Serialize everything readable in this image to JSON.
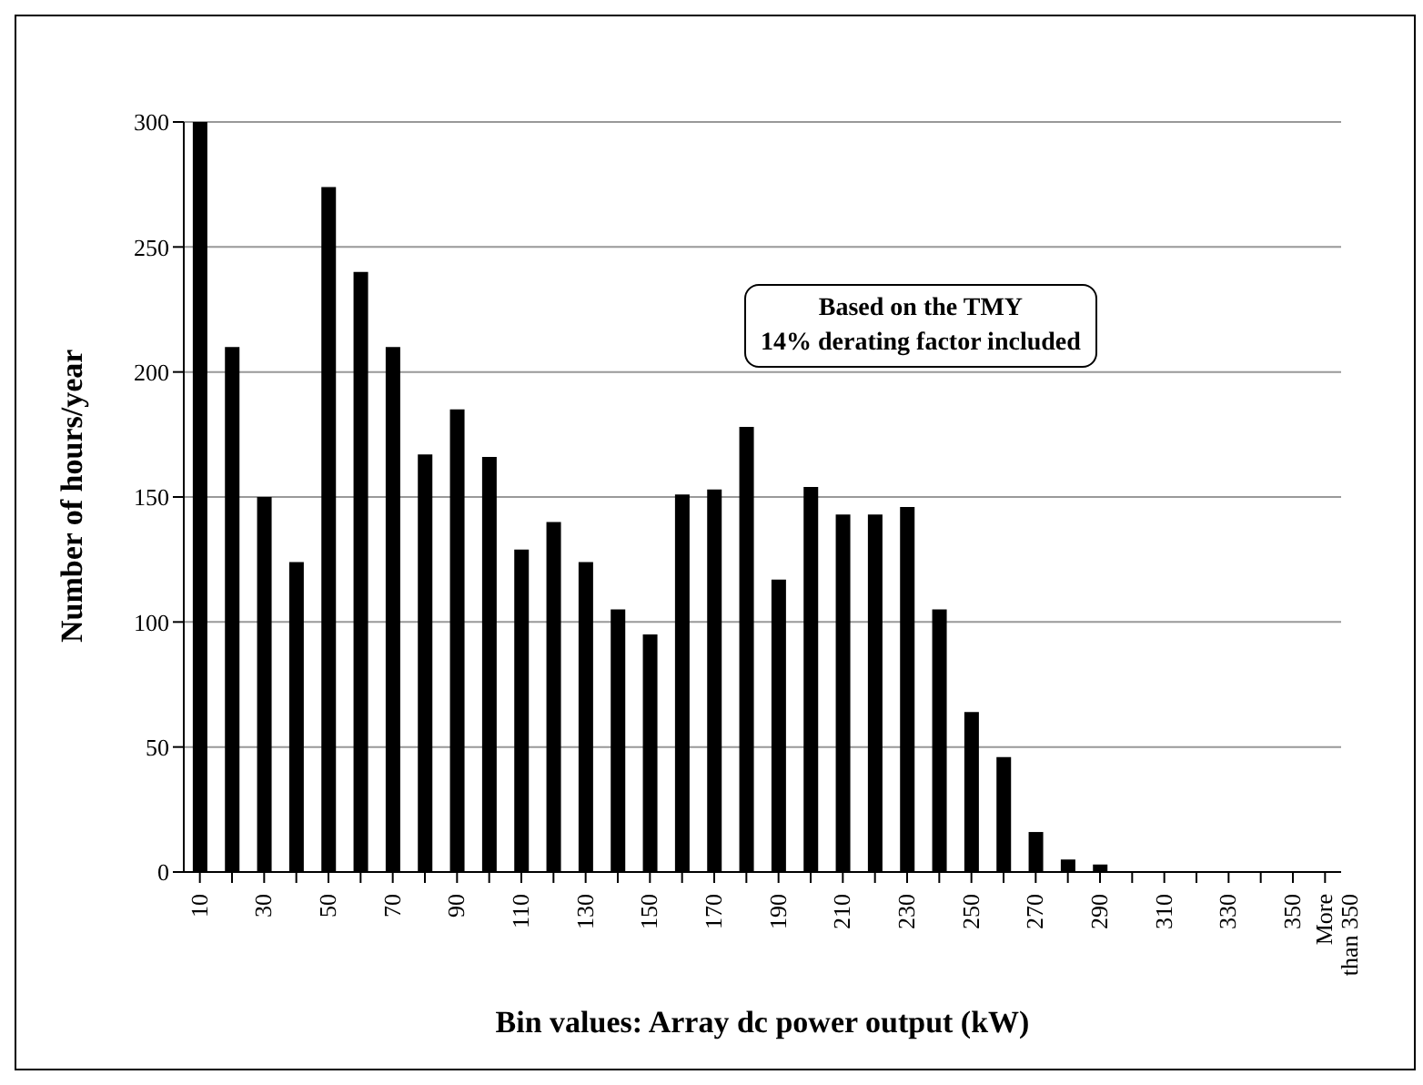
{
  "chart_data": {
    "type": "bar",
    "xlabel": "Bin values:  Array dc power output (kW)",
    "ylabel": "Number of hours/year",
    "categories": [
      "10",
      null,
      "30",
      null,
      "50",
      null,
      "70",
      null,
      "90",
      null,
      "110",
      null,
      "130",
      null,
      "150",
      null,
      "170",
      null,
      "190",
      null,
      "210",
      null,
      "230",
      null,
      "250",
      null,
      "270",
      null,
      "290",
      null,
      "310",
      null,
      "330",
      null,
      "350",
      "More than 350"
    ],
    "values": [
      300,
      210,
      150,
      124,
      274,
      240,
      210,
      167,
      185,
      166,
      129,
      140,
      124,
      105,
      95,
      151,
      153,
      178,
      117,
      154,
      143,
      143,
      146,
      105,
      64,
      46,
      16,
      5,
      3,
      0,
      0,
      0,
      0,
      0,
      0,
      0
    ],
    "color": "#000000",
    "ylim": [
      0,
      300
    ],
    "yticks": [
      0,
      50,
      100,
      150,
      200,
      250,
      300
    ],
    "grid": "y",
    "annotations": [
      "Based on the TMY",
      "14% derating factor included"
    ]
  }
}
